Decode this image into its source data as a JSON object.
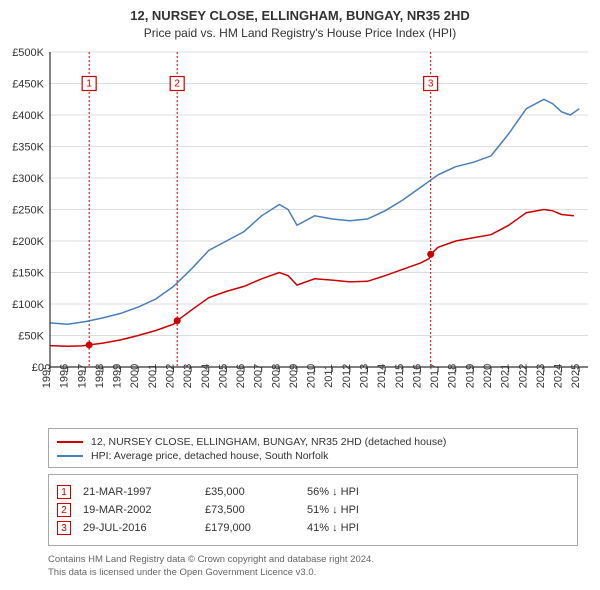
{
  "title_main": "12, NURSEY CLOSE, ELLINGHAM, BUNGAY, NR35 2HD",
  "title_sub": "Price paid vs. HM Land Registry's House Price Index (HPI)",
  "chart": {
    "type": "line",
    "background_color": "#ffffff",
    "grid_color": "#dddddd",
    "axis_color": "#333333",
    "x_min": 1995,
    "x_max": 2025.5,
    "x_ticks": [
      1995,
      1996,
      1997,
      1998,
      1999,
      2000,
      2001,
      2002,
      2003,
      2004,
      2005,
      2006,
      2007,
      2008,
      2009,
      2010,
      2011,
      2012,
      2013,
      2014,
      2015,
      2016,
      2017,
      2018,
      2019,
      2020,
      2021,
      2022,
      2023,
      2024,
      2025
    ],
    "y_min": 0,
    "y_max": 500000,
    "y_ticks": [
      0,
      50000,
      100000,
      150000,
      200000,
      250000,
      300000,
      350000,
      400000,
      450000,
      500000
    ],
    "y_labels": [
      "£0",
      "£50K",
      "£100K",
      "£150K",
      "£200K",
      "£250K",
      "£300K",
      "£350K",
      "£400K",
      "£450K",
      "£500K"
    ],
    "label_fontsize": 11,
    "series": {
      "prop": {
        "color": "#cc0000",
        "width": 1.5,
        "data": [
          [
            1995.0,
            34000
          ],
          [
            1996.0,
            33000
          ],
          [
            1996.8,
            33500
          ],
          [
            1997.22,
            35000
          ],
          [
            1998.0,
            38000
          ],
          [
            1999.0,
            43000
          ],
          [
            2000.0,
            50000
          ],
          [
            2001.0,
            58000
          ],
          [
            2002.0,
            68000
          ],
          [
            2002.21,
            73500
          ],
          [
            2003.0,
            90000
          ],
          [
            2004.0,
            110000
          ],
          [
            2005.0,
            120000
          ],
          [
            2006.0,
            128000
          ],
          [
            2007.0,
            140000
          ],
          [
            2008.0,
            150000
          ],
          [
            2008.5,
            145000
          ],
          [
            2009.0,
            130000
          ],
          [
            2010.0,
            140000
          ],
          [
            2011.0,
            138000
          ],
          [
            2012.0,
            135000
          ],
          [
            2013.0,
            136000
          ],
          [
            2014.0,
            145000
          ],
          [
            2015.0,
            155000
          ],
          [
            2016.0,
            165000
          ],
          [
            2016.5,
            172000
          ],
          [
            2016.58,
            179000
          ],
          [
            2017.0,
            190000
          ],
          [
            2018.0,
            200000
          ],
          [
            2019.0,
            205000
          ],
          [
            2020.0,
            210000
          ],
          [
            2021.0,
            225000
          ],
          [
            2022.0,
            245000
          ],
          [
            2023.0,
            250000
          ],
          [
            2023.5,
            248000
          ],
          [
            2024.0,
            242000
          ],
          [
            2024.7,
            240000
          ]
        ]
      },
      "hpi": {
        "color": "#4a7ebb",
        "width": 1.5,
        "data": [
          [
            1995.0,
            70000
          ],
          [
            1996.0,
            68000
          ],
          [
            1997.0,
            72000
          ],
          [
            1998.0,
            78000
          ],
          [
            1999.0,
            85000
          ],
          [
            2000.0,
            95000
          ],
          [
            2001.0,
            108000
          ],
          [
            2002.0,
            128000
          ],
          [
            2003.0,
            155000
          ],
          [
            2004.0,
            185000
          ],
          [
            2005.0,
            200000
          ],
          [
            2006.0,
            215000
          ],
          [
            2007.0,
            240000
          ],
          [
            2008.0,
            258000
          ],
          [
            2008.5,
            250000
          ],
          [
            2009.0,
            225000
          ],
          [
            2010.0,
            240000
          ],
          [
            2011.0,
            235000
          ],
          [
            2012.0,
            232000
          ],
          [
            2013.0,
            235000
          ],
          [
            2014.0,
            248000
          ],
          [
            2015.0,
            265000
          ],
          [
            2016.0,
            285000
          ],
          [
            2017.0,
            305000
          ],
          [
            2018.0,
            318000
          ],
          [
            2019.0,
            325000
          ],
          [
            2020.0,
            335000
          ],
          [
            2021.0,
            370000
          ],
          [
            2022.0,
            410000
          ],
          [
            2023.0,
            425000
          ],
          [
            2023.5,
            418000
          ],
          [
            2024.0,
            405000
          ],
          [
            2024.5,
            400000
          ],
          [
            2025.0,
            410000
          ]
        ]
      }
    },
    "vline_dash": "2 2",
    "markers": [
      {
        "n": "1",
        "x": 1997.22,
        "y": 35000,
        "label_y": 450000
      },
      {
        "n": "2",
        "x": 2002.21,
        "y": 73500,
        "label_y": 450000
      },
      {
        "n": "3",
        "x": 2016.58,
        "y": 179000,
        "label_y": 450000
      }
    ]
  },
  "legend": {
    "border_color": "#aaaaaa",
    "items": [
      {
        "color": "#cc0000",
        "label": "12, NURSEY CLOSE, ELLINGHAM, BUNGAY, NR35 2HD (detached house)"
      },
      {
        "color": "#4a7ebb",
        "label": "HPI: Average price, detached house, South Norfolk"
      }
    ]
  },
  "transactions": {
    "border_color": "#aaaaaa",
    "marker_color": "#cc0000",
    "rows": [
      {
        "n": "1",
        "date": "21-MAR-1997",
        "price": "£35,000",
        "diff": "56% ↓ HPI"
      },
      {
        "n": "2",
        "date": "19-MAR-2002",
        "price": "£73,500",
        "diff": "51% ↓ HPI"
      },
      {
        "n": "3",
        "date": "29-JUL-2016",
        "price": "£179,000",
        "diff": "41% ↓ HPI"
      }
    ]
  },
  "footer_line1": "Contains HM Land Registry data © Crown copyright and database right 2024.",
  "footer_line2": "This data is licensed under the Open Government Licence v3.0."
}
